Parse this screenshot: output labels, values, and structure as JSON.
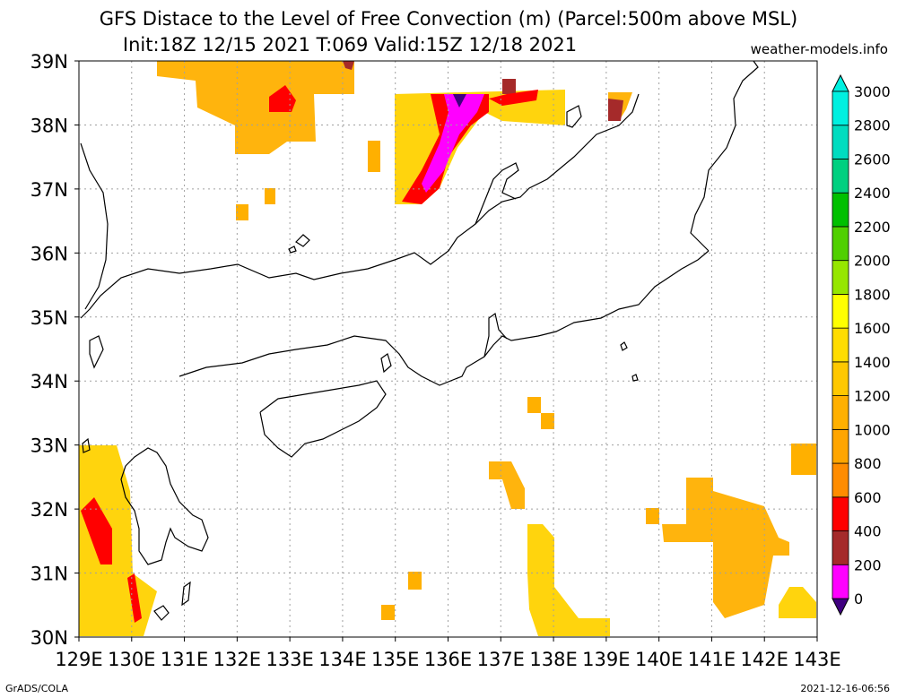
{
  "header": {
    "title": "GFS Distace to the Level of Free Convection (m) (Parcel:500m above MSL)",
    "subtitle": "Init:18Z 12/15 2021 T:069 Valid:15Z 12/18 2021",
    "site": "weather-models.info"
  },
  "footer": {
    "left": "GrADS/COLA",
    "right": "2021-12-16-06:56"
  },
  "map": {
    "lon_labels": [
      "129E",
      "130E",
      "131E",
      "132E",
      "133E",
      "134E",
      "135E",
      "136E",
      "137E",
      "138E",
      "139E",
      "140E",
      "141E",
      "142E",
      "143E"
    ],
    "lat_labels": [
      "39N",
      "38N",
      "37N",
      "36N",
      "35N",
      "34N",
      "33N",
      "32N",
      "31N",
      "30N"
    ],
    "lon_range": [
      129,
      143
    ],
    "lat_range": [
      30,
      39
    ],
    "grid": "dotted"
  },
  "colorbar": {
    "ticks": [
      "3000",
      "2800",
      "2600",
      "2400",
      "2200",
      "2000",
      "1800",
      "1600",
      "1400",
      "1200",
      "1000",
      "800",
      "600",
      "400",
      "200",
      "0"
    ],
    "colors": [
      "#3f007f",
      "#ff00ff",
      "#a52a2a",
      "#ff0000",
      "#ff8c00",
      "#ffa500",
      "#ffb000",
      "#ffc800",
      "#ffdc00",
      "#ffff00",
      "#96e600",
      "#50d000",
      "#00c000",
      "#00d080",
      "#00dcc0",
      "#00f0e0"
    ]
  }
}
